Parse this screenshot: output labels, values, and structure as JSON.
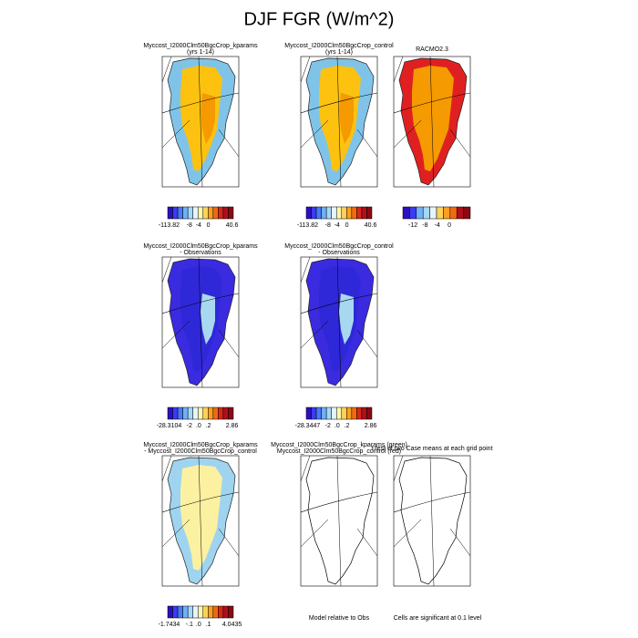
{
  "header": {
    "title": "DJF FGR (W/m^2)"
  },
  "panels": [
    {
      "title": [
        "Myccost_I2000Clm50BgcCrop_kparams",
        "(yrs 1-14)"
      ],
      "colorbar": [
        "-113.82",
        "-8",
        "-4",
        "0",
        "40.6"
      ]
    },
    {
      "title": [
        "Myccost_I2000Clm50BgcCrop_control",
        "(yrs 1-14)"
      ],
      "colorbar": [
        "-113.82",
        "-8",
        "-4",
        "0",
        "40.6"
      ]
    },
    {
      "title": [
        "RACMO2.3"
      ],
      "colorbar": [
        "-12",
        "-8",
        "-4",
        "0"
      ]
    },
    {
      "title": [
        "Myccost_I2000Clm50BgcCrop_kparams",
        "- Observations"
      ],
      "colorbar": [
        "-28.3104",
        "-2",
        ".0",
        ".2",
        "2.86"
      ]
    },
    {
      "title": [
        "Myccost_I2000Clm50BgcCrop_control",
        "- Observations"
      ],
      "colorbar": [
        "-28.3447",
        "-2",
        ".0",
        ".2",
        "2.86"
      ]
    },
    {
      "title": [
        "Myccost_I2000Clm50BgcCrop_kparams",
        "- Myccost_I2000Clm50BgcCrop_control"
      ],
      "colorbar": [
        "-1.7434",
        "-.1",
        ".0",
        ".1",
        "4.0435"
      ]
    },
    {
      "title": [
        "Myccost_I2000Clm50BgcCrop_kparams (green)",
        "Myccost_I2000Clm50BgcCrop_control (red)"
      ],
      "footnote": "Model relative to Obs"
    },
    {
      "title": [
        "t-test of two Case means at each grid point"
      ],
      "footnote": "Cells are significant at 0.1 level"
    }
  ]
}
